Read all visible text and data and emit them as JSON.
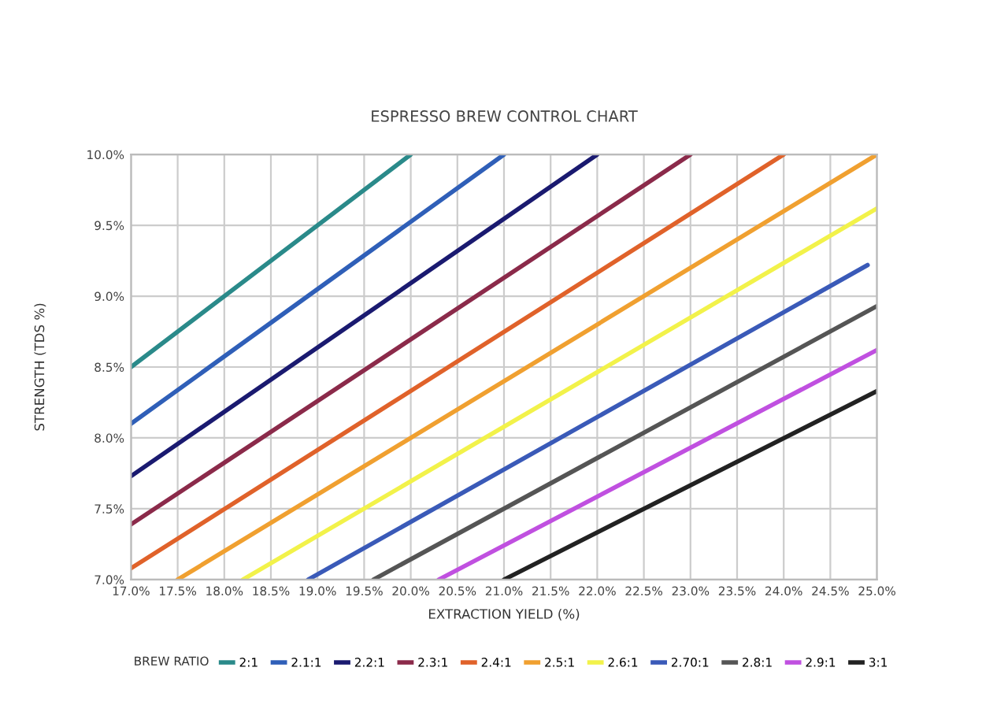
{
  "chart_data": {
    "type": "line",
    "title": "ESPRESSO BREW CONTROL CHART",
    "xlabel": "EXTRACTION YIELD (%)",
    "ylabel": "STRENGTH (TDS %)",
    "legend_title": "BREW RATIO",
    "xlim": [
      17,
      25
    ],
    "ylim": [
      7,
      10
    ],
    "xticks": [
      {
        "value": 17,
        "label": "17.0%"
      },
      {
        "value": 17.5,
        "label": "17.5%"
      },
      {
        "value": 18,
        "label": "18.0%"
      },
      {
        "value": 18.5,
        "label": "18.5%"
      },
      {
        "value": 19,
        "label": "19.0%"
      },
      {
        "value": 19.5,
        "label": "19.5%"
      },
      {
        "value": 20,
        "label": "20.0%"
      },
      {
        "value": 20.5,
        "label": "20.5%"
      },
      {
        "value": 21,
        "label": "21.0%"
      },
      {
        "value": 21.5,
        "label": "21.5%"
      },
      {
        "value": 22,
        "label": "22.0%"
      },
      {
        "value": 22.5,
        "label": "22.5%"
      },
      {
        "value": 23,
        "label": "23.0%"
      },
      {
        "value": 23.5,
        "label": "23.5%"
      },
      {
        "value": 24,
        "label": "24.0%"
      },
      {
        "value": 24.5,
        "label": "24.5%"
      },
      {
        "value": 25,
        "label": "25.0%"
      }
    ],
    "yticks": [
      {
        "value": 7,
        "label": "7.0%"
      },
      {
        "value": 7.5,
        "label": "7.5%"
      },
      {
        "value": 8,
        "label": "8.0%"
      },
      {
        "value": 8.5,
        "label": "8.5%"
      },
      {
        "value": 9,
        "label": "9.0%"
      },
      {
        "value": 9.5,
        "label": "9.5%"
      },
      {
        "value": 10,
        "label": "10.0%"
      }
    ],
    "grid": true,
    "legend": "bottom",
    "marker": "none",
    "line_style": "solid",
    "series": [
      {
        "name": "2:1",
        "color": "#2a8a8a",
        "x": [
          17,
          20
        ],
        "values": [
          8.5,
          10
        ]
      },
      {
        "name": "2.1:1",
        "color": "#2f5fb8",
        "x": [
          17,
          21
        ],
        "values": [
          8.1,
          10
        ]
      },
      {
        "name": "2.2:1",
        "color": "#1a1a70",
        "x": [
          17,
          22
        ],
        "values": [
          7.73,
          10
        ]
      },
      {
        "name": "2.3:1",
        "color": "#8b2a4a",
        "x": [
          17,
          23
        ],
        "values": [
          7.39,
          10
        ]
      },
      {
        "name": "2.4:1",
        "color": "#e0622a",
        "x": [
          17,
          24
        ],
        "values": [
          7.08,
          10
        ]
      },
      {
        "name": "2.5:1",
        "color": "#f0a030",
        "x": [
          17.5,
          25
        ],
        "values": [
          7,
          10
        ]
      },
      {
        "name": "2.6:1",
        "color": "#f2f24a",
        "x": [
          18.2,
          25
        ],
        "values": [
          7,
          9.62
        ]
      },
      {
        "name": "2.70:1",
        "color": "#3a5ab8",
        "x": [
          18.9,
          24.9
        ],
        "values": [
          7,
          9.22
        ]
      },
      {
        "name": "2.8:1",
        "color": "#555555",
        "x": [
          19.6,
          25
        ],
        "values": [
          7,
          8.93
        ]
      },
      {
        "name": "2.9:1",
        "color": "#c050e0",
        "x": [
          20.3,
          25
        ],
        "values": [
          7,
          8.62
        ]
      },
      {
        "name": "3:1",
        "color": "#222222",
        "x": [
          21,
          25
        ],
        "values": [
          7,
          8.33
        ]
      }
    ]
  }
}
